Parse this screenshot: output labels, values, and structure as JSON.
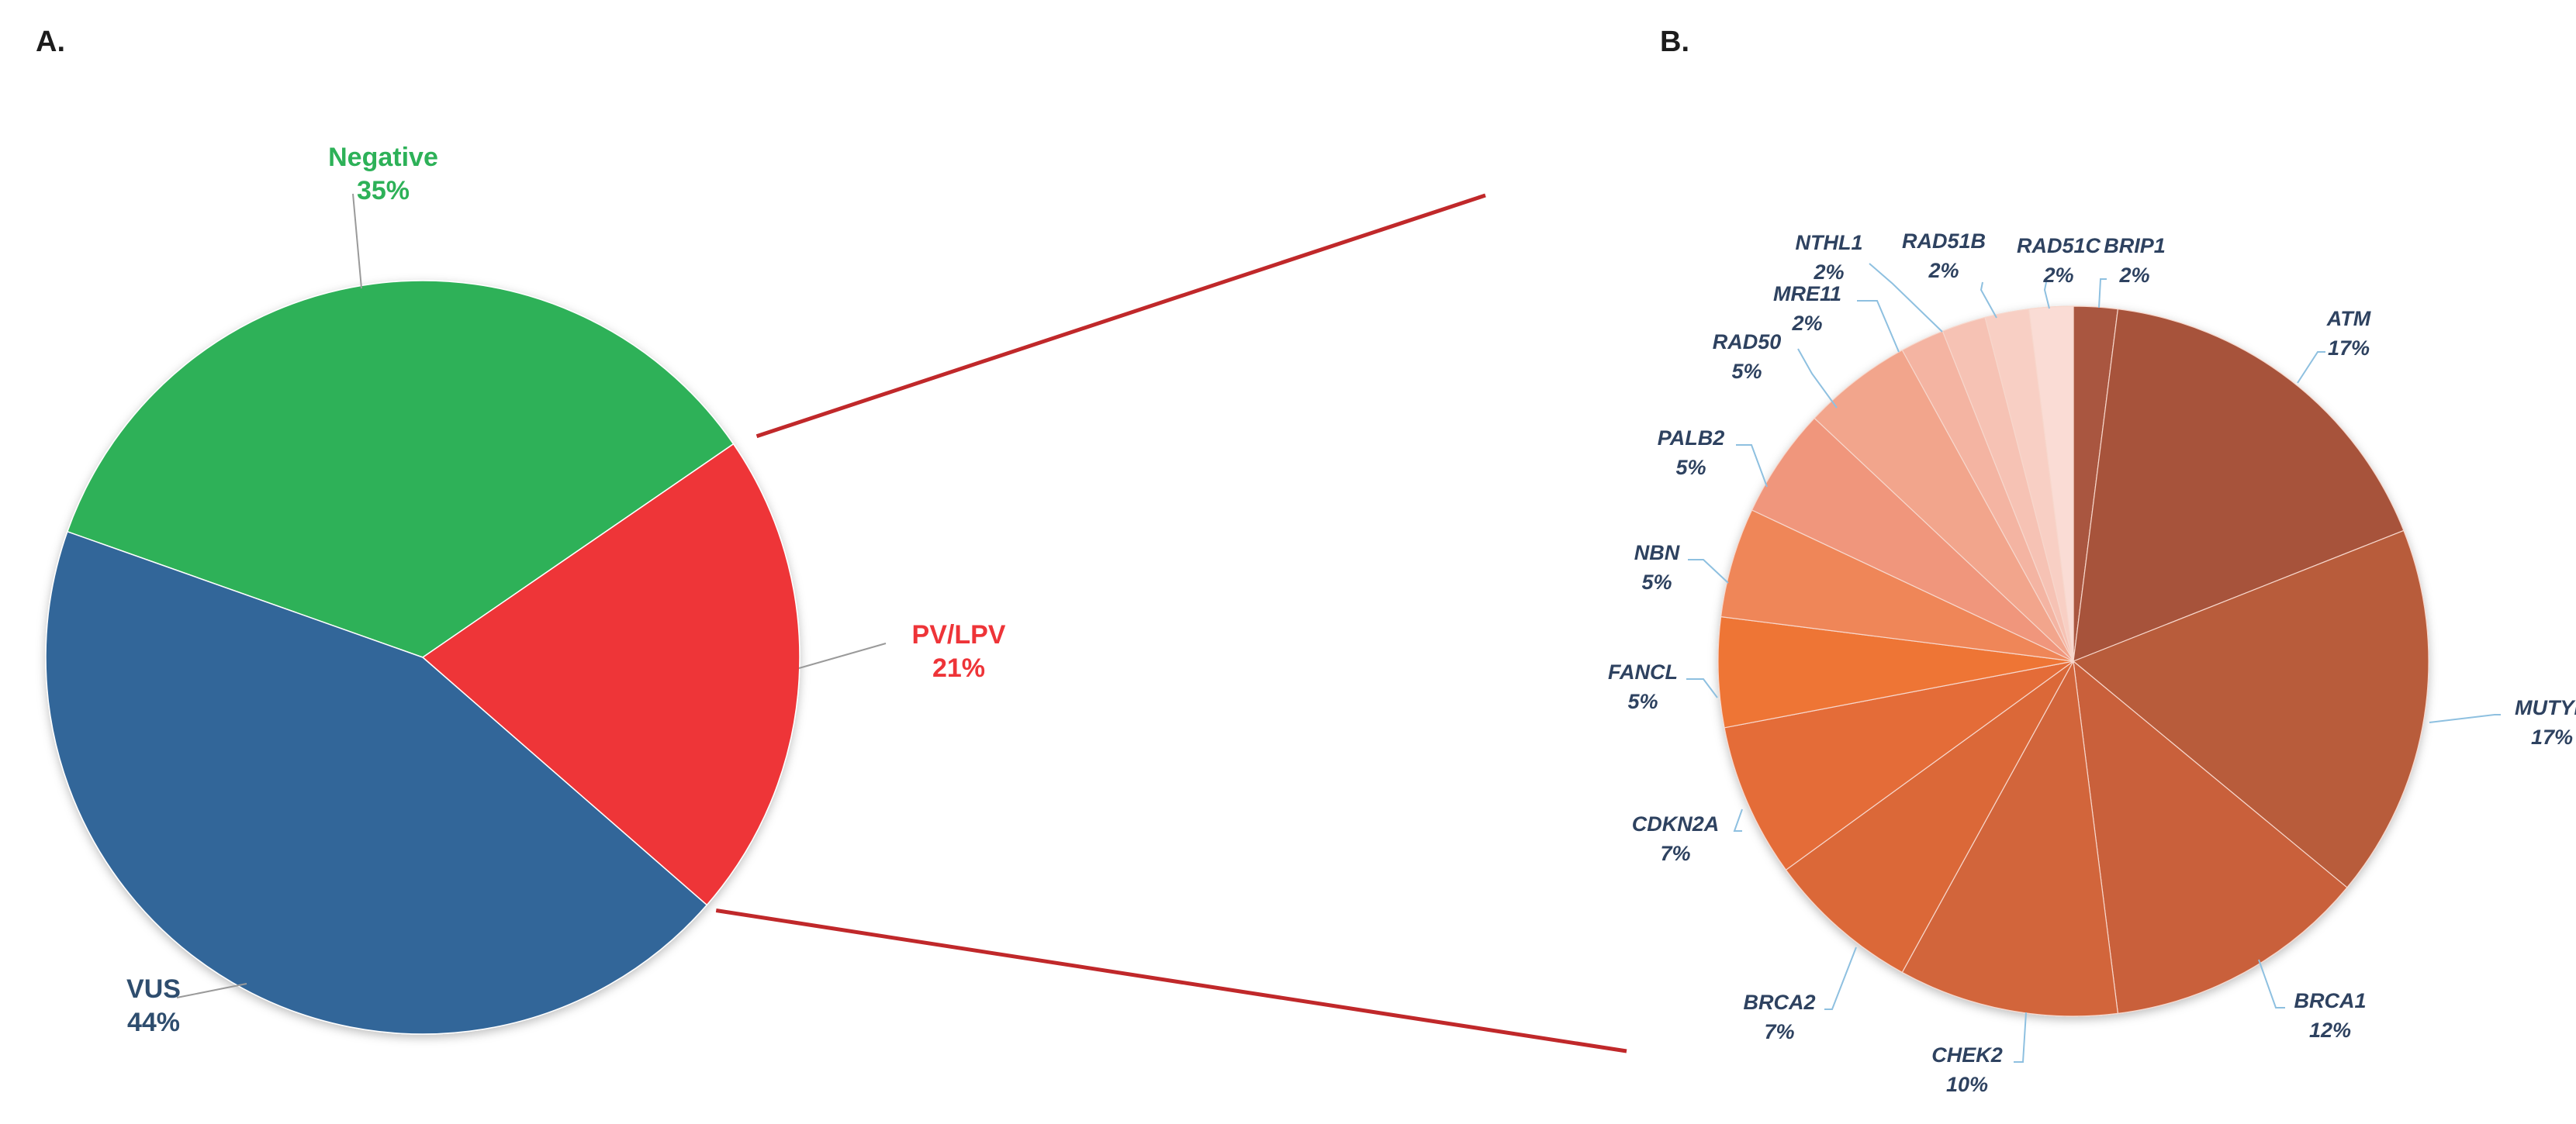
{
  "panel_a_letter": "A.",
  "panel_b_letter": "B.",
  "chart_data": [
    {
      "type": "pie",
      "title": "",
      "slices": [
        {
          "label": "Negative",
          "value": 35,
          "value_label": "35%",
          "color": "#2db158"
        },
        {
          "label": "PV/LPV",
          "value": 21,
          "value_label": "21%",
          "color": "#ee3438"
        },
        {
          "label": "VUS",
          "value": 44,
          "value_label": "44%",
          "color": "#326699"
        }
      ],
      "label_colors": {
        "Negative": "#2db158",
        "PV/LPV": "#ee3438",
        "VUS": "#2e4d6e"
      },
      "connector_color": "#c0282a"
    },
    {
      "type": "pie",
      "title": "",
      "slices": [
        {
          "label": "BRIP1",
          "value": 2,
          "value_label": "2%",
          "color": "#a9573f"
        },
        {
          "label": "ATM",
          "value": 17,
          "value_label": "17%",
          "color": "#a7533a"
        },
        {
          "label": "MUTYH",
          "value": 17,
          "value_label": "17%",
          "color": "#b85b3a"
        },
        {
          "label": "BRCA1",
          "value": 12,
          "value_label": "12%",
          "color": "#c9603a"
        },
        {
          "label": "CHEK2",
          "value": 10,
          "value_label": "10%",
          "color": "#d2653b"
        },
        {
          "label": "BRCA2",
          "value": 7,
          "value_label": "7%",
          "color": "#db6838"
        },
        {
          "label": "CDKN2A",
          "value": 7,
          "value_label": "7%",
          "color": "#e46c39"
        },
        {
          "label": "FANCL",
          "value": 5,
          "value_label": "5%",
          "color": "#ee7436"
        },
        {
          "label": "NBN",
          "value": 5,
          "value_label": "5%",
          "color": "#ef8659"
        },
        {
          "label": "PALB2",
          "value": 5,
          "value_label": "5%",
          "color": "#f0967b"
        },
        {
          "label": "RAD50",
          "value": 5,
          "value_label": "5%",
          "color": "#f2a58c"
        },
        {
          "label": "MRE11",
          "value": 2,
          "value_label": "2%",
          "color": "#f4b4a2"
        },
        {
          "label": "NTHL1",
          "value": 2,
          "value_label": "2%",
          "color": "#f6c2b4"
        },
        {
          "label": "RAD51B",
          "value": 2,
          "value_label": "2%",
          "color": "#f8cfc4"
        },
        {
          "label": "RAD51C",
          "value": 2,
          "value_label": "2%",
          "color": "#fadcd5"
        }
      ],
      "label_color": "#2e4260",
      "leader_color": "#8ec0e0"
    }
  ]
}
